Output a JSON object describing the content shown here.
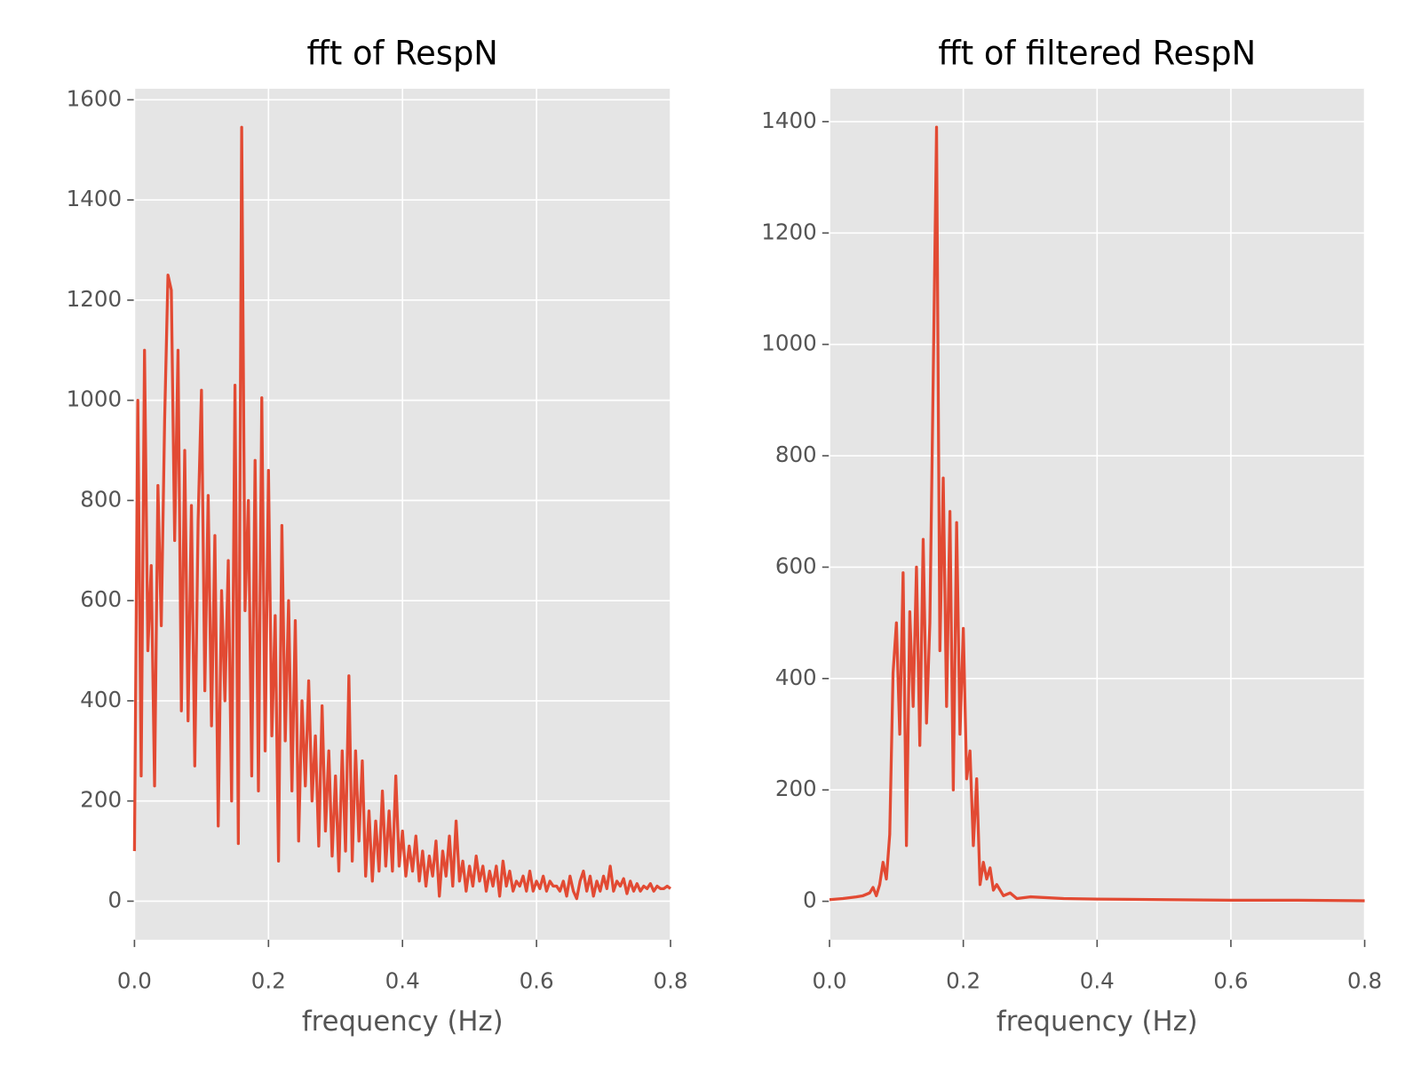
{
  "chart_data": [
    {
      "type": "line",
      "title": "fft of RespN",
      "xlabel": "frequency (Hz)",
      "color": "#e24a33",
      "grid": true,
      "x": [
        0,
        0.005,
        0.01,
        0.015,
        0.02,
        0.025,
        0.03,
        0.035,
        0.04,
        0.045,
        0.05,
        0.055,
        0.06,
        0.065,
        0.07,
        0.075,
        0.08,
        0.085,
        0.09,
        0.095,
        0.1,
        0.105,
        0.11,
        0.115,
        0.12,
        0.125,
        0.13,
        0.135,
        0.14,
        0.145,
        0.15,
        0.155,
        0.16,
        0.165,
        0.17,
        0.175,
        0.18,
        0.185,
        0.19,
        0.195,
        0.2,
        0.205,
        0.21,
        0.215,
        0.22,
        0.225,
        0.23,
        0.235,
        0.24,
        0.245,
        0.25,
        0.255,
        0.26,
        0.265,
        0.27,
        0.275,
        0.28,
        0.285,
        0.29,
        0.295,
        0.3,
        0.305,
        0.31,
        0.315,
        0.32,
        0.325,
        0.33,
        0.335,
        0.34,
        0.345,
        0.35,
        0.355,
        0.36,
        0.365,
        0.37,
        0.375,
        0.38,
        0.385,
        0.39,
        0.395,
        0.4,
        0.405,
        0.41,
        0.415,
        0.42,
        0.425,
        0.43,
        0.435,
        0.44,
        0.445,
        0.45,
        0.455,
        0.46,
        0.465,
        0.47,
        0.475,
        0.48,
        0.485,
        0.49,
        0.495,
        0.5,
        0.505,
        0.51,
        0.515,
        0.52,
        0.525,
        0.53,
        0.535,
        0.54,
        0.545,
        0.55,
        0.555,
        0.56,
        0.565,
        0.57,
        0.575,
        0.58,
        0.585,
        0.59,
        0.595,
        0.6,
        0.605,
        0.61,
        0.615,
        0.62,
        0.625,
        0.63,
        0.635,
        0.64,
        0.645,
        0.65,
        0.655,
        0.66,
        0.665,
        0.67,
        0.675,
        0.68,
        0.685,
        0.69,
        0.695,
        0.7,
        0.705,
        0.71,
        0.715,
        0.72,
        0.725,
        0.73,
        0.735,
        0.74,
        0.745,
        0.75,
        0.755,
        0.76,
        0.765,
        0.77,
        0.775,
        0.78,
        0.785,
        0.79,
        0.795,
        0.8
      ],
      "values": [
        100,
        1000,
        250,
        1100,
        500,
        670,
        230,
        830,
        550,
        960,
        1250,
        1220,
        720,
        1100,
        380,
        900,
        360,
        790,
        270,
        760,
        1020,
        420,
        810,
        350,
        730,
        150,
        620,
        400,
        680,
        200,
        1030,
        115,
        1545,
        580,
        800,
        250,
        880,
        220,
        1005,
        300,
        860,
        330,
        570,
        80,
        750,
        320,
        600,
        220,
        560,
        120,
        400,
        230,
        440,
        200,
        330,
        110,
        390,
        140,
        300,
        90,
        250,
        60,
        300,
        100,
        450,
        80,
        300,
        120,
        280,
        50,
        180,
        40,
        160,
        60,
        220,
        70,
        180,
        60,
        250,
        70,
        140,
        50,
        110,
        60,
        130,
        40,
        100,
        30,
        90,
        50,
        120,
        10,
        100,
        50,
        130,
        30,
        160,
        40,
        80,
        20,
        70,
        30,
        90,
        40,
        70,
        20,
        60,
        30,
        70,
        10,
        80,
        30,
        60,
        20,
        40,
        30,
        50,
        20,
        60,
        20,
        40,
        25,
        50,
        20,
        40,
        30,
        30,
        20,
        40,
        10,
        50,
        20,
        5,
        40,
        60,
        20,
        50,
        10,
        40,
        20,
        50,
        25,
        70,
        20,
        40,
        30,
        45,
        15,
        40,
        20,
        35,
        20,
        30,
        25,
        35,
        20,
        30,
        25,
        25,
        30,
        25
      ],
      "xlim": [
        0,
        0.8
      ],
      "xticks": [
        {
          "value": 0,
          "label": "0.0"
        },
        0.2,
        0.4,
        0.6,
        0.8
      ],
      "ylim": [
        -77,
        1622
      ],
      "yticks": [
        0,
        200,
        400,
        600,
        800,
        1000,
        1200,
        1400,
        1600
      ]
    },
    {
      "type": "line",
      "title": "fft of filtered RespN",
      "xlabel": "frequency (Hz)",
      "color": "#e24a33",
      "grid": true,
      "x": [
        0,
        0.02,
        0.04,
        0.05,
        0.06,
        0.065,
        0.07,
        0.075,
        0.08,
        0.085,
        0.09,
        0.095,
        0.1,
        0.105,
        0.11,
        0.115,
        0.12,
        0.125,
        0.13,
        0.135,
        0.14,
        0.145,
        0.15,
        0.155,
        0.16,
        0.165,
        0.17,
        0.175,
        0.18,
        0.185,
        0.19,
        0.195,
        0.2,
        0.205,
        0.21,
        0.215,
        0.22,
        0.225,
        0.23,
        0.235,
        0.24,
        0.245,
        0.25,
        0.26,
        0.27,
        0.28,
        0.3,
        0.35,
        0.4,
        0.5,
        0.6,
        0.7,
        0.8
      ],
      "values": [
        3,
        5,
        8,
        10,
        15,
        25,
        10,
        30,
        70,
        40,
        120,
        410,
        500,
        300,
        590,
        100,
        520,
        350,
        600,
        280,
        650,
        320,
        500,
        940,
        1390,
        450,
        760,
        350,
        700,
        200,
        680,
        300,
        490,
        220,
        270,
        100,
        220,
        30,
        70,
        40,
        60,
        20,
        30,
        10,
        15,
        5,
        8,
        5,
        4,
        3,
        2,
        2,
        1
      ],
      "xlim": [
        0,
        0.8
      ],
      "xticks": [
        {
          "value": 0,
          "label": "0.0"
        },
        0.2,
        0.4,
        0.6,
        0.8
      ],
      "ylim": [
        -69,
        1459
      ],
      "yticks": [
        0,
        200,
        400,
        600,
        800,
        1000,
        1200,
        1400
      ]
    }
  ]
}
